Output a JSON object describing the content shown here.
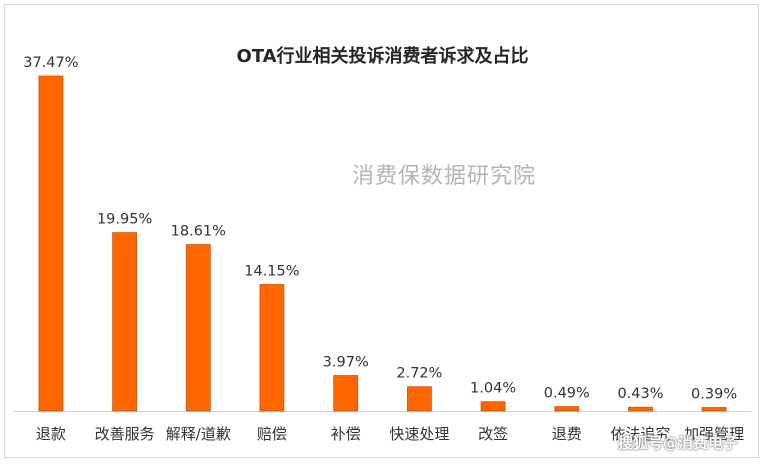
{
  "chart_data": {
    "type": "bar",
    "title": "OTA行业相关投诉消费者诉求及占比",
    "categories": [
      "退款",
      "改善服务",
      "解释/道歉",
      "赔偿",
      "补偿",
      "快速处理",
      "改签",
      "退费",
      "依法追究",
      "加强管理"
    ],
    "values": [
      37.47,
      19.95,
      18.61,
      14.15,
      3.97,
      2.72,
      1.04,
      0.49,
      0.43,
      0.39
    ],
    "value_labels": [
      "37.47%",
      "19.95%",
      "18.61%",
      "14.15%",
      "3.97%",
      "2.72%",
      "1.04%",
      "0.49%",
      "0.43%",
      "0.39%"
    ],
    "ylim": [
      0,
      37.47
    ],
    "grid": false,
    "bar_color": "#FF6600",
    "bar_edge_color": "#C55A11"
  },
  "watermark": "消费保数据研究院",
  "footer_watermark": "搜狐号@消费电子"
}
